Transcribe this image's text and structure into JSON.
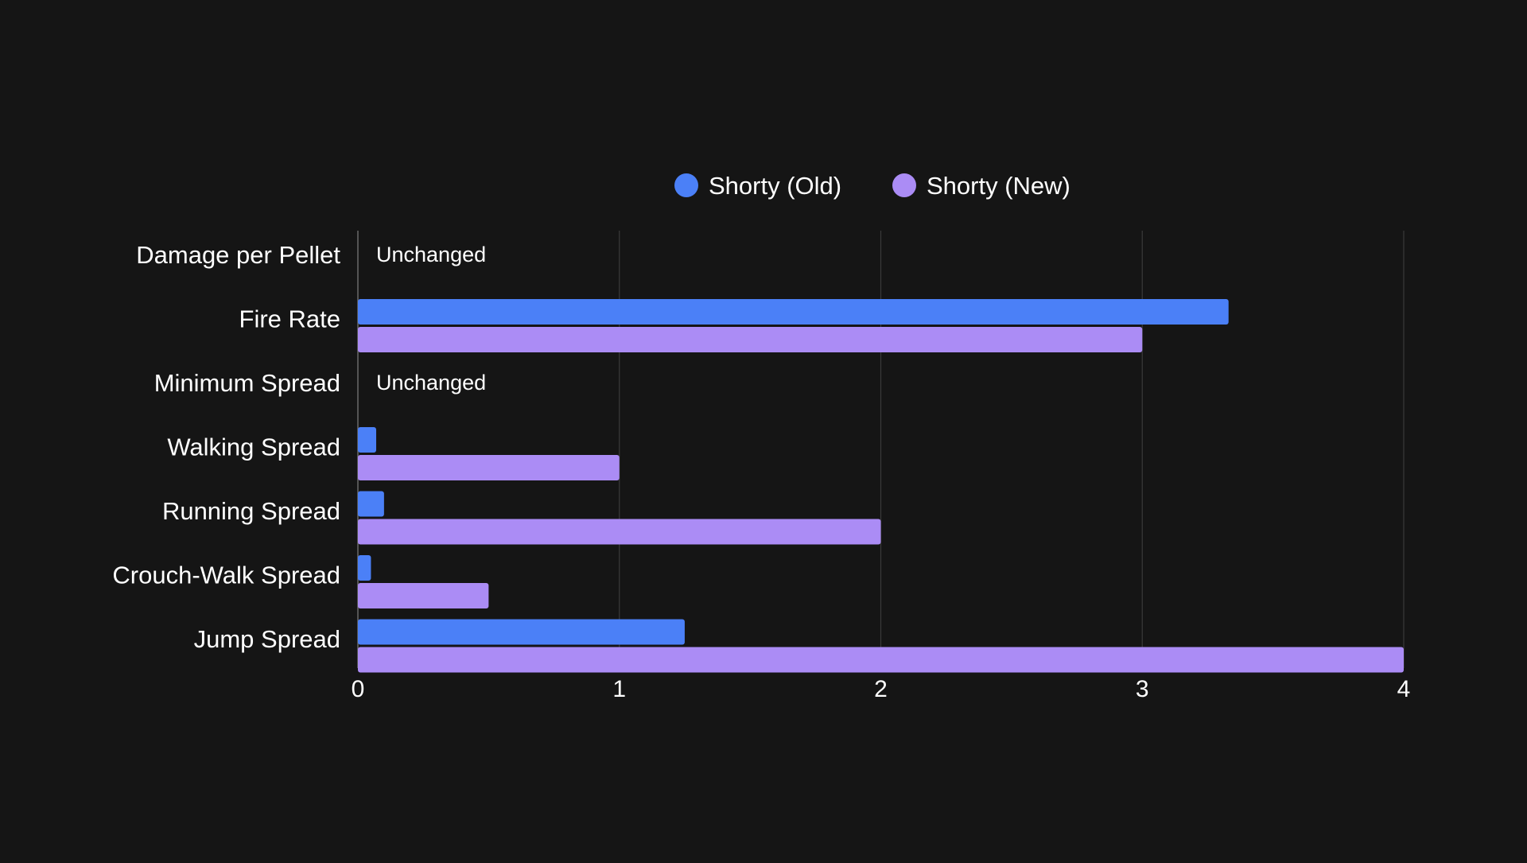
{
  "chart_data": {
    "type": "bar",
    "orientation": "horizontal",
    "title": "",
    "xlabel": "",
    "ylabel": "",
    "xlim": [
      0,
      4
    ],
    "x_ticks": [
      0,
      1,
      2,
      3,
      4
    ],
    "grid": "vertical",
    "legend_position": "top-center",
    "categories": [
      "Damage per Pellet",
      "Fire Rate",
      "Minimum Spread",
      "Walking Spread",
      "Running Spread",
      "Crouch-Walk Spread",
      "Jump Spread"
    ],
    "series": [
      {
        "name": "Shorty (Old)",
        "color": "#4b80f7",
        "values": [
          null,
          3.33,
          null,
          0.07,
          0.1,
          0.05,
          1.25
        ]
      },
      {
        "name": "Shorty (New)",
        "color": "#ab8cf5",
        "values": [
          null,
          3.0,
          null,
          1.0,
          2.0,
          0.5,
          4.0
        ]
      }
    ],
    "annotations": [
      {
        "category": "Damage per Pellet",
        "text": "Unchanged"
      },
      {
        "category": "Minimum Spread",
        "text": "Unchanged"
      }
    ]
  }
}
